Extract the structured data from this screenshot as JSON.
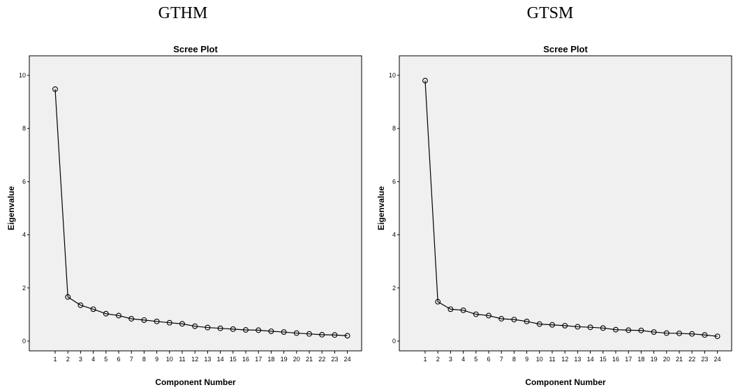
{
  "headings": [
    "GTHM",
    "GTSM"
  ],
  "chart_data": [
    {
      "type": "line",
      "title": "Scree Plot",
      "xlabel": "Component Number",
      "ylabel": "Eigenvalue",
      "ylim": [
        0,
        10
      ],
      "yticks": [
        0,
        2,
        4,
        6,
        8,
        10
      ],
      "x": [
        1,
        2,
        3,
        4,
        5,
        6,
        7,
        8,
        9,
        10,
        11,
        12,
        13,
        14,
        15,
        16,
        17,
        18,
        19,
        20,
        21,
        22,
        23,
        24
      ],
      "values": [
        9.48,
        1.66,
        1.35,
        1.2,
        1.03,
        0.96,
        0.84,
        0.79,
        0.74,
        0.69,
        0.65,
        0.56,
        0.51,
        0.48,
        0.45,
        0.42,
        0.41,
        0.37,
        0.34,
        0.3,
        0.27,
        0.24,
        0.23,
        0.2
      ],
      "grid": false
    },
    {
      "type": "line",
      "title": "Scree Plot",
      "xlabel": "Component Number",
      "ylabel": "Eigenvalue",
      "ylim": [
        0,
        10
      ],
      "yticks": [
        0,
        2,
        4,
        6,
        8,
        10
      ],
      "x": [
        1,
        2,
        3,
        4,
        5,
        6,
        7,
        8,
        9,
        10,
        11,
        12,
        13,
        14,
        15,
        16,
        17,
        18,
        19,
        20,
        21,
        22,
        23,
        24
      ],
      "values": [
        9.8,
        1.48,
        1.2,
        1.16,
        1.01,
        0.96,
        0.84,
        0.81,
        0.74,
        0.64,
        0.61,
        0.58,
        0.54,
        0.52,
        0.49,
        0.43,
        0.41,
        0.4,
        0.34,
        0.3,
        0.29,
        0.27,
        0.23,
        0.18
      ],
      "grid": false
    }
  ]
}
